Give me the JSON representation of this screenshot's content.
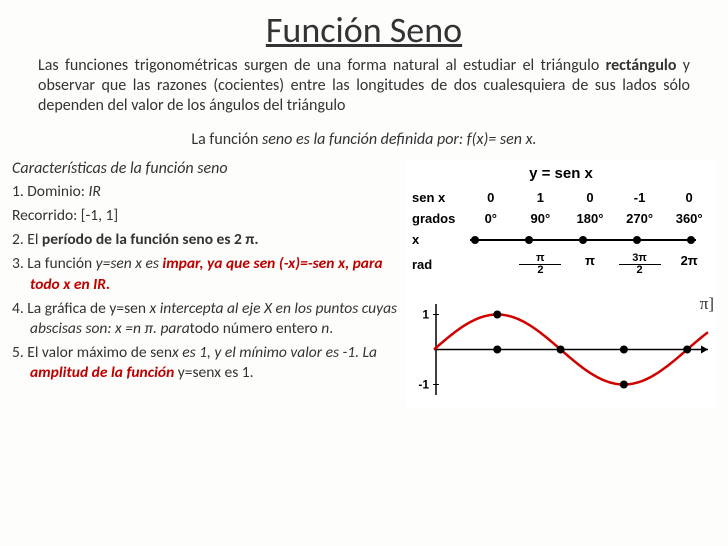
{
  "title": "Función  Seno",
  "intro": {
    "pre": "Las funciones trigonométricas surgen de una forma natural al estudiar el triángulo ",
    "bold": "rectángulo",
    "post": " y observar que las razones (cocientes) entre las longitudes de dos cualesquiera de sus lados sólo dependen del valor de los ángulos del triángulo"
  },
  "definition": {
    "pre": "La función ",
    "italic": "seno es la función definida por: f(x)= sen x."
  },
  "subheading": "Características de la función seno",
  "items": {
    "i1_pre": "1. Dominio: ",
    "i1_val": "IR",
    "i1b": "Recorrido: [-1, 1]",
    "i2_pre": "2. El ",
    "i2_bold": "período de la función seno es 2 π.",
    "i3_pre": "3. La función ",
    "i3_it1": "y=sen x es ",
    "i3_red": "impar, ya que sen  (-x)=-sen x, para todo x en IR.",
    "i4_pre": "4. La gráfica de y=sen ",
    "i4_it1": "x intercepta al eje X en los puntos cuyas abscisas son: x =n π. para",
    "i4_post": "todo número entero ",
    "i4_n": "n",
    "i4_dot": ".",
    "i5_pre": "5. El valor máximo de sen",
    "i5_it1": "x es 1, y el mínimo valor es -1. La ",
    "i5_red": "amplitud de la función",
    "i5_post": " y=senx es 1."
  },
  "table": {
    "title": "y = sen x",
    "rows": [
      {
        "label": "sen x",
        "vals": [
          "0",
          "1",
          "0",
          "-1",
          "0"
        ]
      },
      {
        "label": "grados",
        "vals": [
          "0°",
          "90°",
          "180°",
          "270°",
          "360°"
        ]
      },
      {
        "label": "x",
        "vals": [
          "",
          "",
          "",
          "",
          ""
        ]
      },
      {
        "label": "rad",
        "vals": [
          "",
          "π/2",
          "π",
          "3π/2",
          "2π"
        ]
      }
    ]
  },
  "graph": {
    "type": "line",
    "function": "sin",
    "line_color": "#d00000",
    "line_width": 2.5,
    "axis_color": "#000000",
    "background": "#ffffff",
    "xlim": [
      0,
      6.8
    ],
    "ylim": [
      -1.3,
      1.3
    ],
    "y_ticks": [
      1,
      -1
    ],
    "marker_color": "#000000",
    "marker_radius": 4,
    "markers_x": [
      1.5708,
      3.1416,
      4.7124,
      6.2832
    ],
    "extreme_markers": [
      1.5708,
      4.7124
    ]
  },
  "pi_label": "π]"
}
